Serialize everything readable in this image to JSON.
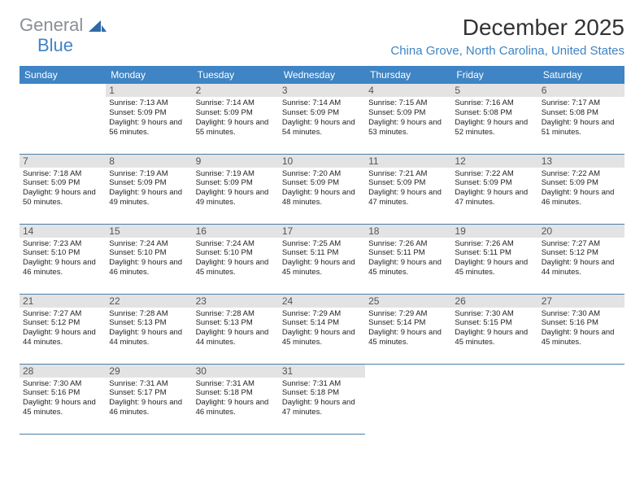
{
  "logo": {
    "word1": "General",
    "word2": "Blue"
  },
  "title": "December 2025",
  "location": "China Grove, North Carolina, United States",
  "colors": {
    "header_bg": "#3f84c4",
    "header_text": "#ffffff",
    "daynum_bg": "#e3e3e3",
    "cell_border": "#4a7ea8",
    "logo_gray": "#8a8f94",
    "logo_blue": "#3f84c4"
  },
  "typography": {
    "title_fontsize": 28,
    "location_fontsize": 15,
    "dayhead_fontsize": 12,
    "cell_fontsize": 9.5
  },
  "day_headers": [
    "Sunday",
    "Monday",
    "Tuesday",
    "Wednesday",
    "Thursday",
    "Friday",
    "Saturday"
  ],
  "weeks": [
    [
      null,
      {
        "n": "1",
        "sr": "7:13 AM",
        "ss": "5:09 PM",
        "dl": "9 hours and 56 minutes."
      },
      {
        "n": "2",
        "sr": "7:14 AM",
        "ss": "5:09 PM",
        "dl": "9 hours and 55 minutes."
      },
      {
        "n": "3",
        "sr": "7:14 AM",
        "ss": "5:09 PM",
        "dl": "9 hours and 54 minutes."
      },
      {
        "n": "4",
        "sr": "7:15 AM",
        "ss": "5:09 PM",
        "dl": "9 hours and 53 minutes."
      },
      {
        "n": "5",
        "sr": "7:16 AM",
        "ss": "5:08 PM",
        "dl": "9 hours and 52 minutes."
      },
      {
        "n": "6",
        "sr": "7:17 AM",
        "ss": "5:08 PM",
        "dl": "9 hours and 51 minutes."
      }
    ],
    [
      {
        "n": "7",
        "sr": "7:18 AM",
        "ss": "5:09 PM",
        "dl": "9 hours and 50 minutes."
      },
      {
        "n": "8",
        "sr": "7:19 AM",
        "ss": "5:09 PM",
        "dl": "9 hours and 49 minutes."
      },
      {
        "n": "9",
        "sr": "7:19 AM",
        "ss": "5:09 PM",
        "dl": "9 hours and 49 minutes."
      },
      {
        "n": "10",
        "sr": "7:20 AM",
        "ss": "5:09 PM",
        "dl": "9 hours and 48 minutes."
      },
      {
        "n": "11",
        "sr": "7:21 AM",
        "ss": "5:09 PM",
        "dl": "9 hours and 47 minutes."
      },
      {
        "n": "12",
        "sr": "7:22 AM",
        "ss": "5:09 PM",
        "dl": "9 hours and 47 minutes."
      },
      {
        "n": "13",
        "sr": "7:22 AM",
        "ss": "5:09 PM",
        "dl": "9 hours and 46 minutes."
      }
    ],
    [
      {
        "n": "14",
        "sr": "7:23 AM",
        "ss": "5:10 PM",
        "dl": "9 hours and 46 minutes."
      },
      {
        "n": "15",
        "sr": "7:24 AM",
        "ss": "5:10 PM",
        "dl": "9 hours and 46 minutes."
      },
      {
        "n": "16",
        "sr": "7:24 AM",
        "ss": "5:10 PM",
        "dl": "9 hours and 45 minutes."
      },
      {
        "n": "17",
        "sr": "7:25 AM",
        "ss": "5:11 PM",
        "dl": "9 hours and 45 minutes."
      },
      {
        "n": "18",
        "sr": "7:26 AM",
        "ss": "5:11 PM",
        "dl": "9 hours and 45 minutes."
      },
      {
        "n": "19",
        "sr": "7:26 AM",
        "ss": "5:11 PM",
        "dl": "9 hours and 45 minutes."
      },
      {
        "n": "20",
        "sr": "7:27 AM",
        "ss": "5:12 PM",
        "dl": "9 hours and 44 minutes."
      }
    ],
    [
      {
        "n": "21",
        "sr": "7:27 AM",
        "ss": "5:12 PM",
        "dl": "9 hours and 44 minutes."
      },
      {
        "n": "22",
        "sr": "7:28 AM",
        "ss": "5:13 PM",
        "dl": "9 hours and 44 minutes."
      },
      {
        "n": "23",
        "sr": "7:28 AM",
        "ss": "5:13 PM",
        "dl": "9 hours and 44 minutes."
      },
      {
        "n": "24",
        "sr": "7:29 AM",
        "ss": "5:14 PM",
        "dl": "9 hours and 45 minutes."
      },
      {
        "n": "25",
        "sr": "7:29 AM",
        "ss": "5:14 PM",
        "dl": "9 hours and 45 minutes."
      },
      {
        "n": "26",
        "sr": "7:30 AM",
        "ss": "5:15 PM",
        "dl": "9 hours and 45 minutes."
      },
      {
        "n": "27",
        "sr": "7:30 AM",
        "ss": "5:16 PM",
        "dl": "9 hours and 45 minutes."
      }
    ],
    [
      {
        "n": "28",
        "sr": "7:30 AM",
        "ss": "5:16 PM",
        "dl": "9 hours and 45 minutes."
      },
      {
        "n": "29",
        "sr": "7:31 AM",
        "ss": "5:17 PM",
        "dl": "9 hours and 46 minutes."
      },
      {
        "n": "30",
        "sr": "7:31 AM",
        "ss": "5:18 PM",
        "dl": "9 hours and 46 minutes."
      },
      {
        "n": "31",
        "sr": "7:31 AM",
        "ss": "5:18 PM",
        "dl": "9 hours and 47 minutes."
      },
      null,
      null,
      null
    ]
  ],
  "labels": {
    "sunrise": "Sunrise:",
    "sunset": "Sunset:",
    "daylight": "Daylight:"
  }
}
